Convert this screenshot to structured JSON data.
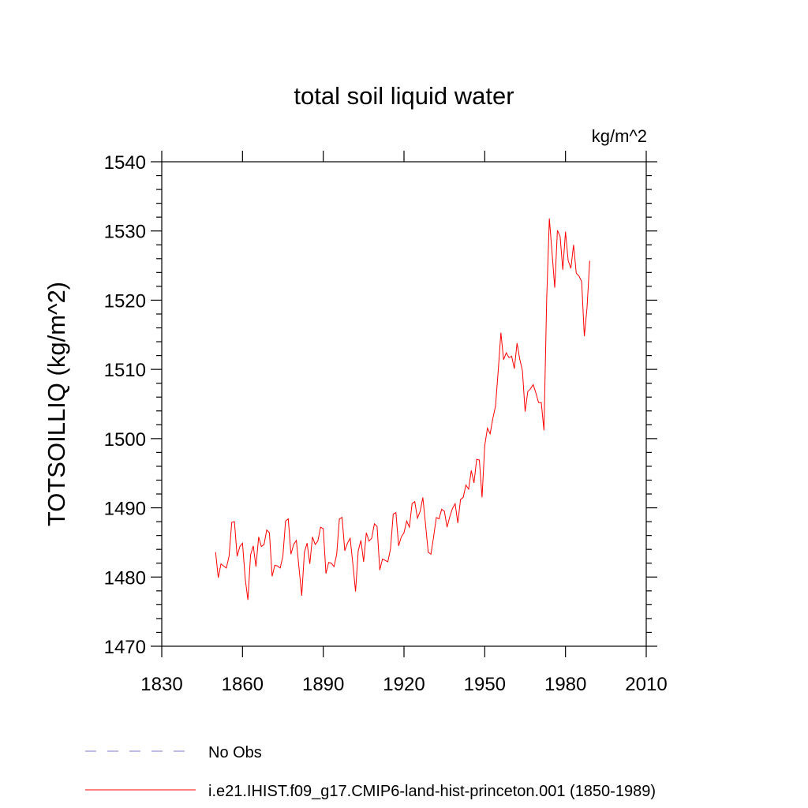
{
  "chart_data": {
    "type": "line",
    "title": "total soil liquid water",
    "units": "kg/m^2",
    "y_label": "TOTSOILLIQ  (kg/m^2)",
    "xlim": [
      1830,
      2010
    ],
    "xticks": [
      1830,
      1860,
      1890,
      1920,
      1950,
      1980,
      2010
    ],
    "ylim": [
      1470,
      1540
    ],
    "yticks": [
      1470,
      1480,
      1490,
      1500,
      1510,
      1520,
      1530,
      1540
    ],
    "yminorticks": [
      1472,
      1474,
      1476,
      1478,
      1482,
      1484,
      1486,
      1488,
      1492,
      1494,
      1496,
      1498,
      1502,
      1504,
      1506,
      1508,
      1512,
      1514,
      1516,
      1518,
      1522,
      1524,
      1526,
      1528,
      1532,
      1534,
      1536,
      1538
    ],
    "legend_entries": [
      {
        "name": "No Obs",
        "color": "#7b7bd0",
        "dash": true
      }
    ],
    "x": [
      1850,
      1851,
      1852,
      1853,
      1854,
      1855,
      1856,
      1857,
      1858,
      1859,
      1860,
      1861,
      1862,
      1863,
      1864,
      1865,
      1866,
      1867,
      1868,
      1869,
      1870,
      1871,
      1872,
      1873,
      1874,
      1875,
      1876,
      1877,
      1878,
      1879,
      1880,
      1881,
      1882,
      1883,
      1884,
      1885,
      1886,
      1887,
      1888,
      1889,
      1890,
      1891,
      1892,
      1893,
      1894,
      1895,
      1896,
      1897,
      1898,
      1899,
      1900,
      1901,
      1902,
      1903,
      1904,
      1905,
      1906,
      1907,
      1908,
      1909,
      1910,
      1911,
      1912,
      1913,
      1914,
      1915,
      1916,
      1917,
      1918,
      1919,
      1920,
      1921,
      1922,
      1923,
      1924,
      1925,
      1926,
      1927,
      1928,
      1929,
      1930,
      1931,
      1932,
      1933,
      1934,
      1935,
      1936,
      1937,
      1938,
      1939,
      1940,
      1941,
      1942,
      1943,
      1944,
      1945,
      1946,
      1947,
      1948,
      1949,
      1950,
      1951,
      1952,
      1953,
      1954,
      1955,
      1956,
      1957,
      1958,
      1959,
      1960,
      1961,
      1962,
      1963,
      1964,
      1965,
      1966,
      1967,
      1968,
      1969,
      1970,
      1971,
      1972,
      1973,
      1974,
      1975,
      1976,
      1977,
      1978,
      1979,
      1980,
      1981,
      1982,
      1983,
      1984,
      1985,
      1986,
      1987,
      1988,
      1989
    ],
    "series": [
      {
        "name": "i.e21.IHIST.f09_g17.CMIP6-land-hist-princeton.001 (1850-1989)",
        "color": "#ff0000",
        "values": [
          1483.6,
          1479.9,
          1481.9,
          1481.6,
          1481.3,
          1483.0,
          1487.9,
          1488.0,
          1483.0,
          1484.4,
          1484.9,
          1479.8,
          1476.7,
          1483.2,
          1484.5,
          1481.5,
          1485.8,
          1484.4,
          1484.7,
          1486.8,
          1486.4,
          1480.1,
          1481.7,
          1481.6,
          1481.3,
          1483.0,
          1488.1,
          1488.4,
          1483.3,
          1484.7,
          1485.3,
          1481.3,
          1477.3,
          1483.6,
          1484.9,
          1481.9,
          1485.8,
          1484.7,
          1485.2,
          1487.2,
          1487.0,
          1480.5,
          1482.1,
          1482.0,
          1481.5,
          1483.3,
          1488.4,
          1488.6,
          1483.8,
          1484.9,
          1485.6,
          1481.9,
          1477.9,
          1483.8,
          1485.3,
          1482.2,
          1486.4,
          1485.2,
          1485.6,
          1487.7,
          1487.3,
          1481.0,
          1482.6,
          1482.4,
          1482.2,
          1484.1,
          1489.1,
          1489.3,
          1484.5,
          1485.8,
          1486.4,
          1488.1,
          1487.2,
          1490.6,
          1490.9,
          1488.5,
          1489.5,
          1491.5,
          1487.6,
          1483.6,
          1483.3,
          1485.8,
          1488.6,
          1488.4,
          1489.8,
          1489.5,
          1487.2,
          1488.7,
          1489.9,
          1490.6,
          1487.8,
          1491.2,
          1491.5,
          1493.3,
          1492.7,
          1495.4,
          1493.6,
          1497.0,
          1496.9,
          1491.5,
          1499.0,
          1501.5,
          1500.7,
          1502.9,
          1504.7,
          1509.8,
          1515.3,
          1511.4,
          1512.4,
          1511.7,
          1511.9,
          1510.1,
          1513.8,
          1511.5,
          1509.8,
          1503.9,
          1506.8,
          1507.2,
          1507.8,
          1506.6,
          1505.2,
          1505.2,
          1501.2,
          1520.0,
          1531.8,
          1526.9,
          1521.8,
          1530.1,
          1529.2,
          1524.4,
          1529.9,
          1525.7,
          1524.6,
          1528.0,
          1523.9,
          1523.5,
          1522.7,
          1514.8,
          1518.9,
          1525.7
        ]
      }
    ]
  }
}
